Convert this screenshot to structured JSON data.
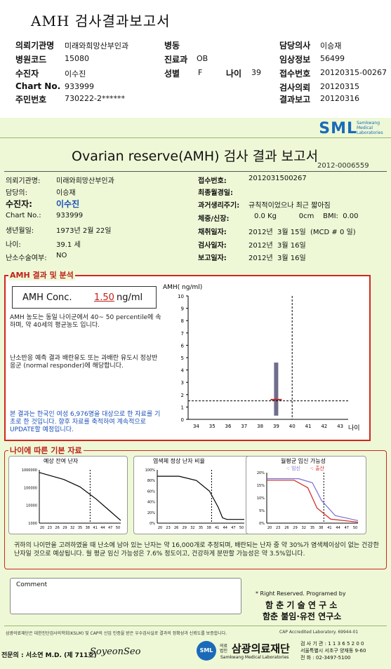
{
  "title": "AMH 검사결과보고서",
  "header": [
    {
      "label": "의뢰기관명",
      "value": "미래와희망산부인과"
    },
    {
      "label": "병원코드",
      "value": "15080"
    },
    {
      "label": "수진자",
      "value": "이수진"
    },
    {
      "label": "Chart No.",
      "value": "933999"
    },
    {
      "label": "주민번호",
      "value": "730222-2******"
    },
    {
      "label": "병동",
      "value": ""
    },
    {
      "label": "진료과",
      "value": "OB"
    },
    {
      "label": "성별",
      "value": "F"
    },
    {
      "label": "나이",
      "value": "39"
    },
    {
      "label": "담당의사",
      "value": "이승재"
    },
    {
      "label": "임상정보",
      "value": "56499"
    },
    {
      "label": "접수번호",
      "value": "20120315-00267"
    },
    {
      "label": "검사의뢰",
      "value": "20120315"
    },
    {
      "label": "결과보고",
      "value": "20120316"
    }
  ],
  "report": {
    "logo": "SML",
    "logo_sub": "Samkwang Medical Laboratories",
    "title": "Ovarian reserve(AMH) 검사 결과 보고서",
    "number": "2012-0006559",
    "left": [
      {
        "label": "의뢰기관명:",
        "value": "미래와희망산부인과"
      },
      {
        "label": "담당의:",
        "value": "이승재"
      },
      {
        "label": "수진자:",
        "value": "이수진"
      },
      {
        "label": "Chart No.:",
        "value": "933999"
      },
      {
        "label": "생년월일:",
        "value": "1973년 2월 22일"
      },
      {
        "label": "나이:",
        "value": "39.1 세"
      },
      {
        "label": "난소수술여부:",
        "value": "NO"
      }
    ],
    "right": [
      {
        "label": "접수번호:",
        "value": "2012031500267"
      },
      {
        "label": "최종월경일:",
        "value": ""
      },
      {
        "label": "과거생리주기:",
        "value": "규칙적이었으나 최근 짧아짐"
      },
      {
        "label": "체중/신장:",
        "value": "0.0 Kg          0cm    BMI:  0.00"
      },
      {
        "label": "채취일자:",
        "value": "2012년  3월 15일  (MCD # 0 일)"
      },
      {
        "label": "검사일자:",
        "value": "2012년  3월 16일"
      },
      {
        "label": "보고일자:",
        "value": "2012년  3월 16일"
      }
    ],
    "amh_section": "AMH 결과 및 분석",
    "conc_label": "AMH Conc.",
    "conc_value": "1.50",
    "conc_unit": "ng/ml",
    "para1": "AMH 농도는 동일 나이군에서   40~ 50 percentile에 속하며, 약  40세의 평균농도 입니다.",
    "para2": "난소반응 예측 결과 배란유도 또는 과배란 유도시 정상반응군 (normal responder)에 해당합니다.",
    "para3": "본 결과는 한국인 여성 6,976명을 대상으로 한 자료를 기초로 한 것입니다. 향후 자료를 축적하여 계속적으로 UPDATE할 예정입니다.",
    "age_section": "나이에 따른 기본 자료",
    "summary": "귀하의 나이만을 고려하였을 때 난소에 남아 있는 난자는 약      16,000개로 추정되며, 배란되는 난자 중 약  30%가 염색체이상이 없는 건강한 난자일 것으로 예상됩니다. 월 평균 임신 가능성은 7.6% 정도이고, 건강하게 분만할 가능성은 약 3.5%입니다.",
    "comment": "Comment",
    "rights": "* Right Reserved. Programed by",
    "inst1": "함 춘  기 술  연 구 소",
    "inst2": "함춘 불임·유전 연구소",
    "foot_text": "삼광의료재단은 대한진단검사의학회(KSLM) 및 CAP의 신임 인증을 받은 우수검사실로 결과의 정확성과 신뢰도를 보증합니다.",
    "cap": "CAP  Accredited  Laboratory.  69944-01",
    "specialist": "전문의 : 서소연 M.D. (제 711호)",
    "signature": "SoyeonSeo",
    "foundation_small": "의료법인",
    "foundation": "삼광의료재단",
    "foundation_en": "Samkwang Medical Laboratories",
    "contact": [
      "검 사 기 관 : 1 1 3 6 5 2 0 0",
      "서울특별시 서초구 양재동 9-60",
      "전  화 : 02-3497-5100"
    ]
  },
  "chart_data": [
    {
      "type": "scatter",
      "title": "",
      "ylabel": "AMH( ng/ml)",
      "xlabel": "나이",
      "x_ticks": [
        34,
        35,
        36,
        37,
        38,
        39,
        40,
        41,
        42,
        43
      ],
      "y_ticks": [
        0,
        1,
        2,
        3,
        4,
        5,
        6,
        7,
        8,
        9,
        10
      ],
      "ylim": [
        0,
        10
      ],
      "range_bar": {
        "x": 39,
        "low": 0.3,
        "high": 4.6
      },
      "mean_marker": {
        "x": 39,
        "y": 1.6
      },
      "ref_lines": {
        "age": 40,
        "amh": 1.5
      }
    },
    {
      "type": "line",
      "title": "예상 잔여 난자",
      "y_ticks": [
        "1000000",
        "100000",
        "10000",
        "1000"
      ],
      "x_ticks": [
        "20",
        "23",
        "26",
        "29",
        "32",
        "35",
        "38",
        "41",
        "44",
        "47",
        "50"
      ],
      "marker_age": 39
    },
    {
      "type": "line",
      "title": "염색체 정상 난자 비율",
      "y_ticks": [
        "100%",
        "80%",
        "60%",
        "40%",
        "20%",
        "0%"
      ],
      "x_ticks": [
        "20",
        "23",
        "26",
        "29",
        "32",
        "35",
        "38",
        "41",
        "44",
        "47",
        "50"
      ],
      "marker_age": 39
    },
    {
      "type": "line",
      "title": "월평균 임신 가능성",
      "legend": [
        "-: 임신",
        "-: 출산"
      ],
      "y_ticks": [
        "20%",
        "15%",
        "10%",
        "5%",
        "0%"
      ],
      "x_ticks": [
        "20",
        "23",
        "26",
        "29",
        "32",
        "35",
        "38",
        "41",
        "44",
        "47",
        "50"
      ],
      "marker_age": 39
    }
  ],
  "colors": {
    "accent_red": "#d0271f",
    "bg_green": "#eef8d6",
    "blue_text": "#1a4fb8",
    "logo_blue": "#1a6ab8"
  }
}
